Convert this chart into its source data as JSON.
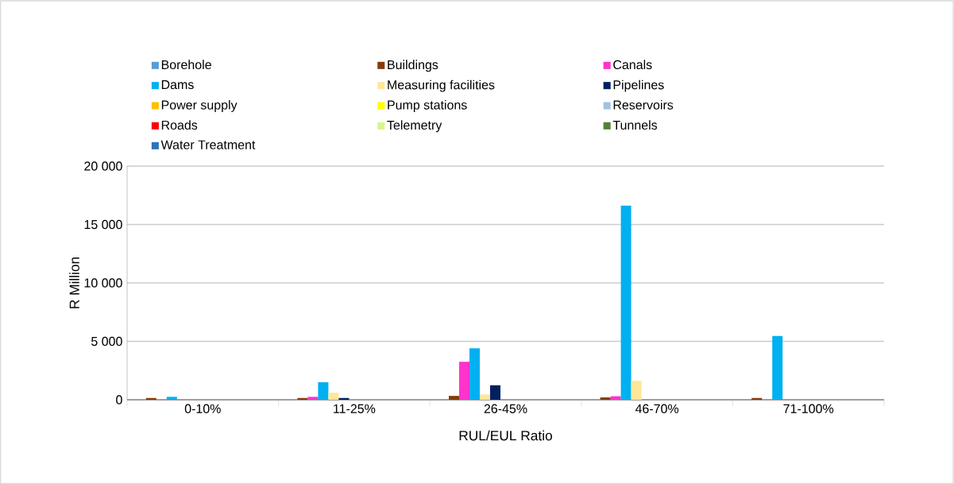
{
  "chart_data": {
    "type": "bar",
    "xlabel": "RUL/EUL Ratio",
    "ylabel": "R Million",
    "categories": [
      "0-10%",
      "11-25%",
      "26-45%",
      "46-70%",
      "71-100%"
    ],
    "ylim": [
      0,
      20000
    ],
    "yticks": [
      {
        "value": 0,
        "label": "0"
      },
      {
        "value": 5000,
        "label": "5 000"
      },
      {
        "value": 10000,
        "label": "10 000"
      },
      {
        "value": 15000,
        "label": "15 000"
      },
      {
        "value": 20000,
        "label": "20 000"
      }
    ],
    "grid": "y",
    "legend": "top",
    "series": [
      {
        "name": "Borehole",
        "color": "#5b9bd5",
        "values": [
          0,
          0,
          0,
          0,
          0
        ]
      },
      {
        "name": "Buildings",
        "color": "#843c0c",
        "values": [
          150,
          150,
          330,
          200,
          150
        ]
      },
      {
        "name": "Canals",
        "color": "#ff33cc",
        "values": [
          0,
          250,
          3250,
          300,
          0
        ]
      },
      {
        "name": "Dams",
        "color": "#00b0f0",
        "values": [
          250,
          1500,
          4400,
          16620,
          5450
        ]
      },
      {
        "name": "Measuring facilities",
        "color": "#ffe699",
        "values": [
          0,
          600,
          450,
          1620,
          null
        ]
      },
      {
        "name": "Pipelines",
        "color": "#002060",
        "values": [
          0,
          150,
          1240,
          0,
          0
        ]
      },
      {
        "name": "Power supply",
        "color": "#ffc000",
        "values": [
          0,
          0,
          0,
          0,
          0
        ]
      },
      {
        "name": "Pump stations",
        "color": "#ffff00",
        "values": [
          0,
          0,
          0,
          0,
          0
        ]
      },
      {
        "name": "Reservoirs",
        "color": "#9dc3e6",
        "values": [
          0,
          0,
          0,
          0,
          0
        ]
      },
      {
        "name": "Roads",
        "color": "#ff0000",
        "values": [
          0,
          0,
          0,
          0,
          0
        ]
      },
      {
        "name": "Telemetry",
        "color": "#d9f58a",
        "values": [
          0,
          0,
          0,
          0,
          0
        ]
      },
      {
        "name": "Tunnels",
        "color": "#548235",
        "values": [
          0,
          0,
          0,
          0,
          0
        ]
      },
      {
        "name": "Water Treatment",
        "color": "#2e75b6",
        "values": [
          0,
          0,
          0,
          0,
          0
        ]
      }
    ]
  }
}
